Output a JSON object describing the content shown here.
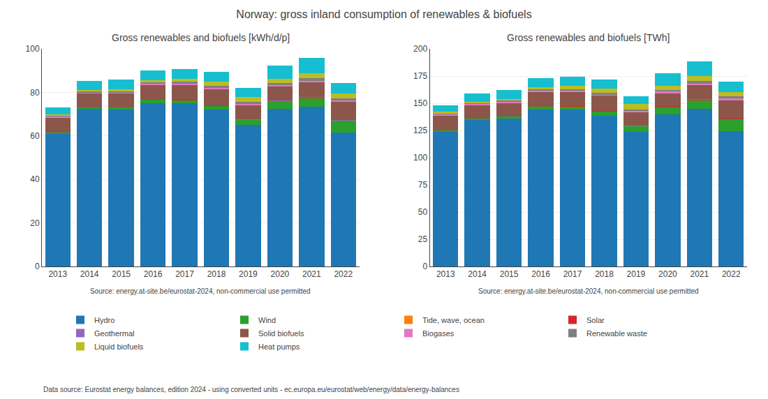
{
  "title": "Norway: gross inland consumption of renewables & biofuels",
  "annotations": [
    "Data source: Eurostat energy balances, edition 2024 - using converted units - ec.europa.eu/eurostat/web/energy/data/energy-balances"
  ],
  "chart_data": [
    {
      "type": "bar",
      "stacked": true,
      "grid": true,
      "legend": "bottom",
      "title": "Gross renewables and biofuels [kWh/d/p]",
      "annotations": [
        "Source: energy.at-site.be/eurostat-2024, non-commercial use permitted"
      ],
      "categories": [
        "2013",
        "2014",
        "2015",
        "2016",
        "2017",
        "2018",
        "2019",
        "2020",
        "2021",
        "2022"
      ],
      "series": [
        {
          "name": "Hydro",
          "color": "#1f77b4",
          "values": [
            61.0,
            72.5,
            72.0,
            75.0,
            75.0,
            72.0,
            65.0,
            72.5,
            73.5,
            61.5
          ]
        },
        {
          "name": "Wind",
          "color": "#2ca02c",
          "values": [
            0.5,
            0.5,
            1.0,
            1.5,
            1.5,
            2.0,
            2.5,
            3.5,
            4.0,
            5.5
          ]
        },
        {
          "name": "Tide, wave, ocean",
          "color": "#ff7f0e",
          "values": [
            0.0,
            0.0,
            0.0,
            0.0,
            0.0,
            0.0,
            0.0,
            0.0,
            0.0,
            0.0
          ]
        },
        {
          "name": "Solar",
          "color": "#d62728",
          "values": [
            0.0,
            0.0,
            0.0,
            0.0,
            0.1,
            0.1,
            0.1,
            0.2,
            0.3,
            0.3
          ]
        },
        {
          "name": "Geothermal",
          "color": "#9467bd",
          "values": [
            0.0,
            0.0,
            0.0,
            0.0,
            0.0,
            0.0,
            0.1,
            0.1,
            0.1,
            0.1
          ]
        },
        {
          "name": "Solid biofuels",
          "color": "#8c564b",
          "values": [
            7.0,
            6.5,
            6.5,
            7.0,
            7.0,
            7.5,
            6.5,
            6.5,
            7.0,
            8.5
          ]
        },
        {
          "name": "Biogases",
          "color": "#e377c2",
          "values": [
            0.3,
            0.3,
            0.3,
            0.4,
            0.4,
            0.4,
            0.5,
            0.5,
            0.5,
            0.5
          ]
        },
        {
          "name": "Renewable waste",
          "color": "#7f7f7f",
          "values": [
            0.7,
            0.8,
            0.8,
            0.8,
            0.8,
            0.9,
            0.8,
            0.9,
            1.0,
            1.0
          ]
        },
        {
          "name": "Liquid biofuels",
          "color": "#bcbd22",
          "values": [
            0.5,
            0.5,
            0.7,
            1.0,
            1.5,
            2.0,
            2.5,
            2.0,
            2.5,
            2.0
          ]
        },
        {
          "name": "Heat pumps",
          "color": "#17becf",
          "values": [
            3.0,
            4.0,
            4.5,
            4.5,
            4.5,
            4.5,
            4.0,
            6.0,
            7.0,
            5.0
          ]
        }
      ],
      "ylim": [
        0,
        100
      ],
      "yticks": [
        0,
        20,
        40,
        60,
        80,
        100
      ]
    },
    {
      "type": "bar",
      "stacked": true,
      "grid": true,
      "legend": "bottom",
      "title": "Gross renewables and biofuels [TWh]",
      "annotations": [
        "Source: energy.at-site.be/eurostat-2024, non-commercial use permitted"
      ],
      "categories": [
        "2013",
        "2014",
        "2015",
        "2016",
        "2017",
        "2018",
        "2019",
        "2020",
        "2021",
        "2022"
      ],
      "series": [
        {
          "name": "Hydro",
          "color": "#1f77b4",
          "values": [
            124.0,
            135.0,
            136.0,
            144.5,
            144.0,
            138.5,
            124.0,
            139.5,
            145.0,
            124.5
          ]
        },
        {
          "name": "Wind",
          "color": "#2ca02c",
          "values": [
            1.0,
            1.0,
            2.0,
            2.5,
            3.0,
            4.0,
            5.0,
            7.0,
            8.0,
            11.0
          ]
        },
        {
          "name": "Tide, wave, ocean",
          "color": "#ff7f0e",
          "values": [
            0.0,
            0.0,
            0.0,
            0.0,
            0.0,
            0.0,
            0.0,
            0.0,
            0.0,
            0.0
          ]
        },
        {
          "name": "Solar",
          "color": "#d62728",
          "values": [
            0.0,
            0.0,
            0.0,
            0.0,
            0.2,
            0.2,
            0.2,
            0.4,
            0.5,
            0.5
          ]
        },
        {
          "name": "Geothermal",
          "color": "#9467bd",
          "values": [
            0.0,
            0.0,
            0.0,
            0.0,
            0.0,
            0.0,
            0.2,
            0.2,
            0.2,
            0.2
          ]
        },
        {
          "name": "Solid biofuels",
          "color": "#8c564b",
          "values": [
            14.0,
            12.5,
            12.5,
            13.5,
            13.5,
            14.5,
            12.5,
            12.5,
            13.5,
            17.0
          ]
        },
        {
          "name": "Biogases",
          "color": "#e377c2",
          "values": [
            0.6,
            0.6,
            0.6,
            0.8,
            0.8,
            0.8,
            1.0,
            1.0,
            1.0,
            1.0
          ]
        },
        {
          "name": "Renewable waste",
          "color": "#7f7f7f",
          "values": [
            1.4,
            1.5,
            1.5,
            1.5,
            1.5,
            1.7,
            1.5,
            1.7,
            2.0,
            2.0
          ]
        },
        {
          "name": "Liquid biofuels",
          "color": "#bcbd22",
          "values": [
            1.0,
            1.0,
            1.3,
            2.0,
            3.0,
            3.8,
            4.8,
            3.8,
            5.0,
            4.0
          ]
        },
        {
          "name": "Heat pumps",
          "color": "#17becf",
          "values": [
            6.0,
            7.5,
            8.5,
            8.5,
            8.5,
            8.5,
            7.5,
            11.5,
            13.5,
            9.5
          ]
        }
      ],
      "ylim": [
        0,
        200
      ],
      "yticks": [
        0,
        25,
        50,
        75,
        100,
        125,
        150,
        175,
        200
      ]
    }
  ]
}
